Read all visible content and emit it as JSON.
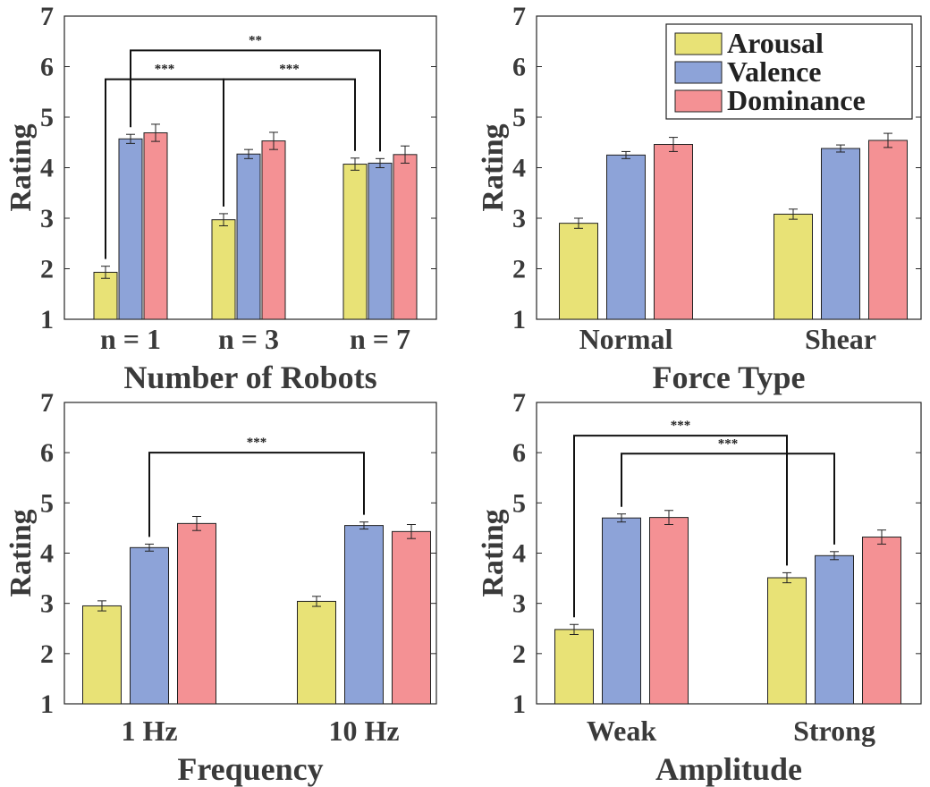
{
  "chart_data": [
    {
      "type": "bar",
      "xlabel": "Number of Robots",
      "ylabel": "Rating",
      "ylim": [
        1,
        7
      ],
      "yticks": [
        "1",
        "2",
        "3",
        "4",
        "5",
        "6",
        "7"
      ],
      "categories": [
        "n = 1",
        "n = 3",
        "n = 7"
      ],
      "series": [
        {
          "name": "Arousal",
          "values": [
            1.93,
            2.97,
            4.07
          ],
          "errors": [
            0.12,
            0.12,
            0.12
          ]
        },
        {
          "name": "Valence",
          "values": [
            4.57,
            4.27,
            4.09
          ],
          "errors": [
            0.09,
            0.09,
            0.09
          ]
        },
        {
          "name": "Dominance",
          "values": [
            4.69,
            4.53,
            4.26
          ],
          "errors": [
            0.17,
            0.17,
            0.17
          ]
        }
      ],
      "significance": [
        {
          "label": "**",
          "from": [
            0,
            1
          ],
          "to": [
            2,
            1
          ],
          "y": 6.32
        },
        {
          "label": "***",
          "from": [
            0,
            0
          ],
          "to": [
            1,
            0
          ],
          "y": 5.75
        },
        {
          "label": "***",
          "from": [
            1,
            0
          ],
          "to": [
            2,
            0
          ],
          "y": 5.75
        }
      ]
    },
    {
      "type": "bar",
      "xlabel": "Force Type",
      "ylabel": "Rating",
      "ylim": [
        1,
        7
      ],
      "yticks": [
        "1",
        "2",
        "3",
        "4",
        "5",
        "6",
        "7"
      ],
      "categories": [
        "Normal",
        "Shear"
      ],
      "legend_position": "top-right",
      "series": [
        {
          "name": "Arousal",
          "values": [
            2.9,
            3.08
          ],
          "errors": [
            0.1,
            0.1
          ]
        },
        {
          "name": "Valence",
          "values": [
            4.25,
            4.38
          ],
          "errors": [
            0.07,
            0.07
          ]
        },
        {
          "name": "Dominance",
          "values": [
            4.46,
            4.54
          ],
          "errors": [
            0.14,
            0.14
          ]
        }
      ],
      "significance": []
    },
    {
      "type": "bar",
      "xlabel": "Frequency",
      "ylabel": "Rating",
      "ylim": [
        1,
        7
      ],
      "yticks": [
        "1",
        "2",
        "3",
        "4",
        "5",
        "6",
        "7"
      ],
      "categories": [
        "1 Hz",
        "10 Hz"
      ],
      "series": [
        {
          "name": "Arousal",
          "values": [
            2.95,
            3.04
          ],
          "errors": [
            0.1,
            0.1
          ]
        },
        {
          "name": "Valence",
          "values": [
            4.11,
            4.55
          ],
          "errors": [
            0.07,
            0.07
          ]
        },
        {
          "name": "Dominance",
          "values": [
            4.59,
            4.43
          ],
          "errors": [
            0.14,
            0.14
          ]
        }
      ],
      "significance": [
        {
          "label": "***",
          "from": [
            0,
            1
          ],
          "to": [
            1,
            1
          ],
          "y": 6.0
        }
      ]
    },
    {
      "type": "bar",
      "xlabel": "Amplitude",
      "ylabel": "Rating",
      "ylim": [
        1,
        7
      ],
      "yticks": [
        "1",
        "2",
        "3",
        "4",
        "5",
        "6",
        "7"
      ],
      "categories": [
        "Weak",
        "Strong"
      ],
      "series": [
        {
          "name": "Arousal",
          "values": [
            2.48,
            3.51
          ],
          "errors": [
            0.1,
            0.1
          ]
        },
        {
          "name": "Valence",
          "values": [
            4.7,
            3.95
          ],
          "errors": [
            0.08,
            0.08
          ]
        },
        {
          "name": "Dominance",
          "values": [
            4.71,
            4.32
          ],
          "errors": [
            0.14,
            0.14
          ]
        }
      ],
      "significance": [
        {
          "label": "***",
          "from": [
            0,
            0
          ],
          "to": [
            1,
            0
          ],
          "y": 6.34
        },
        {
          "label": "***",
          "from": [
            0,
            1
          ],
          "to": [
            1,
            1
          ],
          "y": 5.98
        }
      ]
    }
  ],
  "colors": {
    "Arousal": "#e8e276",
    "Valence": "#8da3d8",
    "Dominance": "#f49194",
    "axis": "#262626",
    "text": "#3a3a3a"
  }
}
